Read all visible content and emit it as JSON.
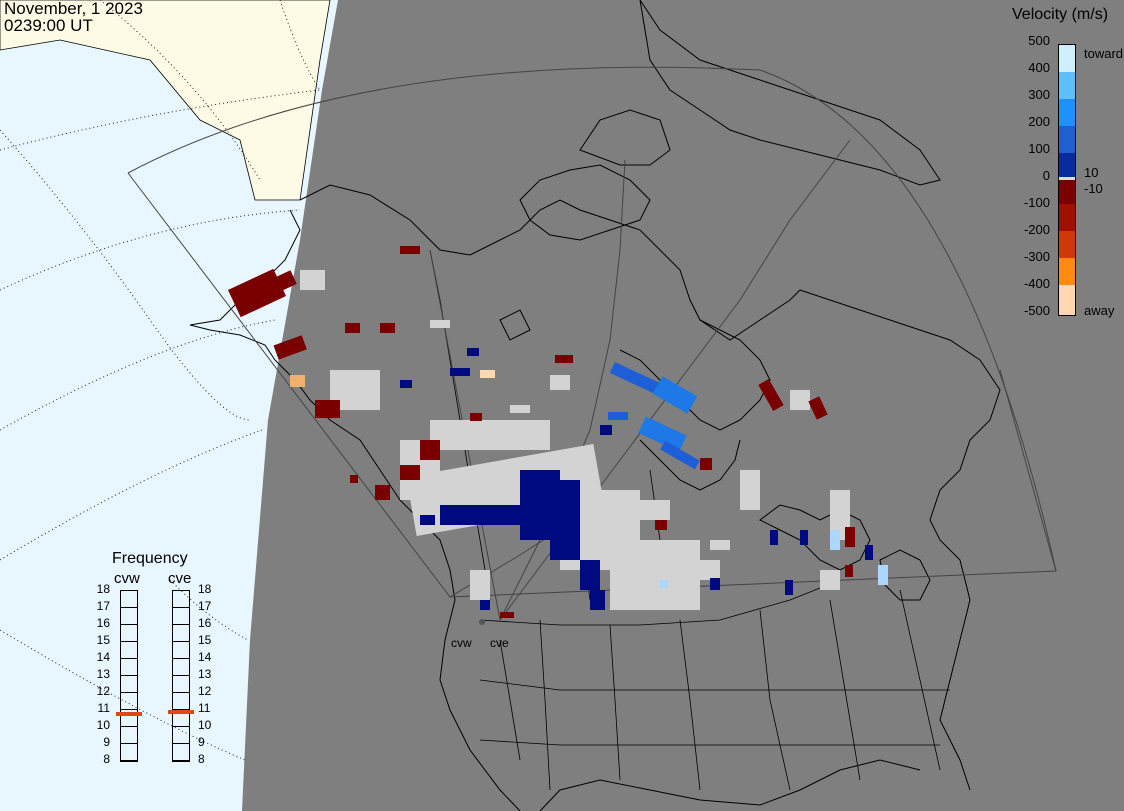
{
  "header": {
    "date": "November, 1 2023",
    "time": "0239:00 UT"
  },
  "velocity_scale": {
    "title": "Velocity (m/s)",
    "ticks": [
      "500",
      "400",
      "300",
      "200",
      "100",
      "0",
      "-100",
      "-200",
      "-300",
      "-400",
      "-500"
    ],
    "inner_ticks": [
      "10",
      "-10"
    ],
    "toward_label": "toward",
    "away_label": "away",
    "colors": {
      "toward_max": "#cfefff",
      "toward_mid": "#1e78e6",
      "toward_low": "#000a80",
      "away_low": "#7a0000",
      "away_mid": "#e04a10",
      "away_max": "#ffd8b0",
      "ground_scatter": "#d3d3d3"
    }
  },
  "frequency": {
    "title": "Frequency",
    "radars": [
      {
        "name": "cvw",
        "value_mhz": 10.7
      },
      {
        "name": "cve",
        "value_mhz": 10.8
      }
    ],
    "ticks": [
      "18",
      "17",
      "16",
      "15",
      "14",
      "13",
      "12",
      "11",
      "10",
      "9",
      "8"
    ],
    "marker_color": "#e0461a"
  },
  "radars": [
    {
      "code": "cvw"
    },
    {
      "code": "cve"
    }
  ],
  "map_colors": {
    "night": "#7f7f7f",
    "day_ocean": "#e8f6ff",
    "day_land": "#fdfbe6",
    "coast": "#000000",
    "fov": "#505050"
  }
}
